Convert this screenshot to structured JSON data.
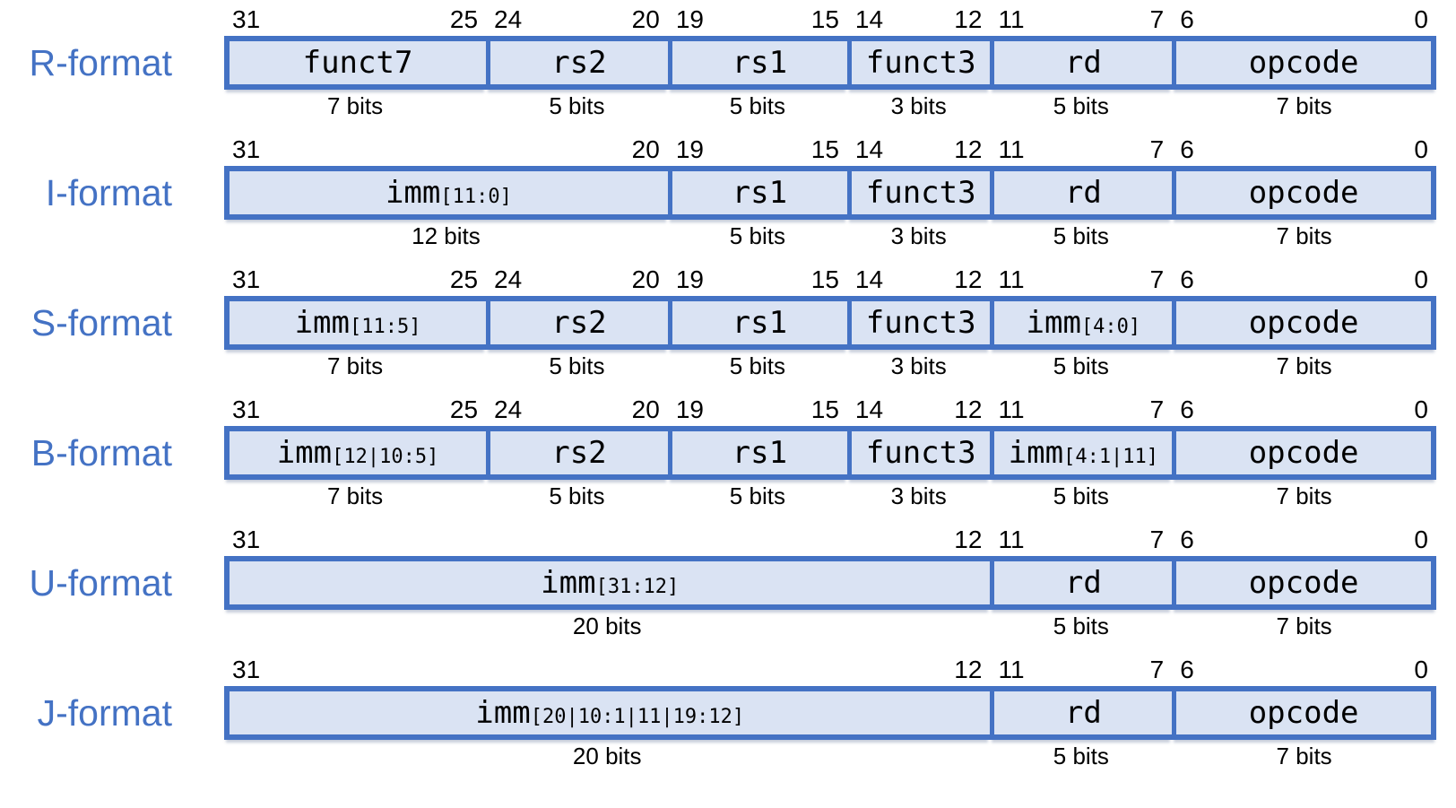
{
  "colors": {
    "border": "#4472C4",
    "fill": "#DAE3F3",
    "label_text": "#4472C4",
    "field_text": "#000000"
  },
  "rows": [
    {
      "label": "R-format",
      "fields": [
        {
          "main": "funct7",
          "sub": "",
          "hi": "31",
          "lo": "25",
          "bits_label": "7 bits",
          "width_pct": 21.6
        },
        {
          "main": "rs2",
          "sub": "",
          "hi": "24",
          "lo": "20",
          "bits_label": "5 bits",
          "width_pct": 15.0
        },
        {
          "main": "rs1",
          "sub": "",
          "hi": "19",
          "lo": "15",
          "bits_label": "5 bits",
          "width_pct": 14.8
        },
        {
          "main": "funct3",
          "sub": "",
          "hi": "14",
          "lo": "12",
          "bits_label": "3 bits",
          "width_pct": 11.8
        },
        {
          "main": "rd",
          "sub": "",
          "hi": "11",
          "lo": "7",
          "bits_label": "5 bits",
          "width_pct": 15.0
        },
        {
          "main": "opcode",
          "sub": "",
          "hi": "6",
          "lo": "0",
          "bits_label": "7 bits",
          "width_pct": 21.8
        }
      ]
    },
    {
      "label": "I-format",
      "fields": [
        {
          "main": "imm",
          "sub": "[11:0]",
          "hi": "31",
          "lo": "20",
          "bits_label": "12 bits",
          "width_pct": 36.6
        },
        {
          "main": "rs1",
          "sub": "",
          "hi": "19",
          "lo": "15",
          "bits_label": "5 bits",
          "width_pct": 14.8
        },
        {
          "main": "funct3",
          "sub": "",
          "hi": "14",
          "lo": "12",
          "bits_label": "3 bits",
          "width_pct": 11.8
        },
        {
          "main": "rd",
          "sub": "",
          "hi": "11",
          "lo": "7",
          "bits_label": "5 bits",
          "width_pct": 15.0
        },
        {
          "main": "opcode",
          "sub": "",
          "hi": "6",
          "lo": "0",
          "bits_label": "7 bits",
          "width_pct": 21.8
        }
      ]
    },
    {
      "label": "S-format",
      "fields": [
        {
          "main": "imm",
          "sub": "[11:5]",
          "hi": "31",
          "lo": "25",
          "bits_label": "7 bits",
          "width_pct": 21.6
        },
        {
          "main": "rs2",
          "sub": "",
          "hi": "24",
          "lo": "20",
          "bits_label": "5 bits",
          "width_pct": 15.0
        },
        {
          "main": "rs1",
          "sub": "",
          "hi": "19",
          "lo": "15",
          "bits_label": "5 bits",
          "width_pct": 14.8
        },
        {
          "main": "funct3",
          "sub": "",
          "hi": "14",
          "lo": "12",
          "bits_label": "3 bits",
          "width_pct": 11.8
        },
        {
          "main": "imm",
          "sub": "[4:0]",
          "hi": "11",
          "lo": "7",
          "bits_label": "5 bits",
          "width_pct": 15.0
        },
        {
          "main": "opcode",
          "sub": "",
          "hi": "6",
          "lo": "0",
          "bits_label": "7 bits",
          "width_pct": 21.8
        }
      ]
    },
    {
      "label": "B-format",
      "fields": [
        {
          "main": "imm",
          "sub": "[12|10:5]",
          "hi": "31",
          "lo": "25",
          "bits_label": "7 bits",
          "width_pct": 21.6
        },
        {
          "main": "rs2",
          "sub": "",
          "hi": "24",
          "lo": "20",
          "bits_label": "5 bits",
          "width_pct": 15.0
        },
        {
          "main": "rs1",
          "sub": "",
          "hi": "19",
          "lo": "15",
          "bits_label": "5 bits",
          "width_pct": 14.8
        },
        {
          "main": "funct3",
          "sub": "",
          "hi": "14",
          "lo": "12",
          "bits_label": "3 bits",
          "width_pct": 11.8
        },
        {
          "main": "imm",
          "sub": "[4:1|11]",
          "hi": "11",
          "lo": "7",
          "bits_label": "5 bits",
          "width_pct": 15.0
        },
        {
          "main": "opcode",
          "sub": "",
          "hi": "6",
          "lo": "0",
          "bits_label": "7 bits",
          "width_pct": 21.8
        }
      ]
    },
    {
      "label": "U-format",
      "fields": [
        {
          "main": "imm",
          "sub": "[31:12]",
          "hi": "31",
          "lo": "12",
          "bits_label": "20 bits",
          "width_pct": 63.2
        },
        {
          "main": "rd",
          "sub": "",
          "hi": "11",
          "lo": "7",
          "bits_label": "5 bits",
          "width_pct": 15.0
        },
        {
          "main": "opcode",
          "sub": "",
          "hi": "6",
          "lo": "0",
          "bits_label": "7 bits",
          "width_pct": 21.8
        }
      ]
    },
    {
      "label": "J-format",
      "fields": [
        {
          "main": "imm",
          "sub": "[20|10:1|11|19:12]",
          "hi": "31",
          "lo": "12",
          "bits_label": "20 bits",
          "width_pct": 63.2
        },
        {
          "main": "rd",
          "sub": "",
          "hi": "11",
          "lo": "7",
          "bits_label": "5 bits",
          "width_pct": 15.0
        },
        {
          "main": "opcode",
          "sub": "",
          "hi": "6",
          "lo": "0",
          "bits_label": "7 bits",
          "width_pct": 21.8
        }
      ]
    }
  ]
}
